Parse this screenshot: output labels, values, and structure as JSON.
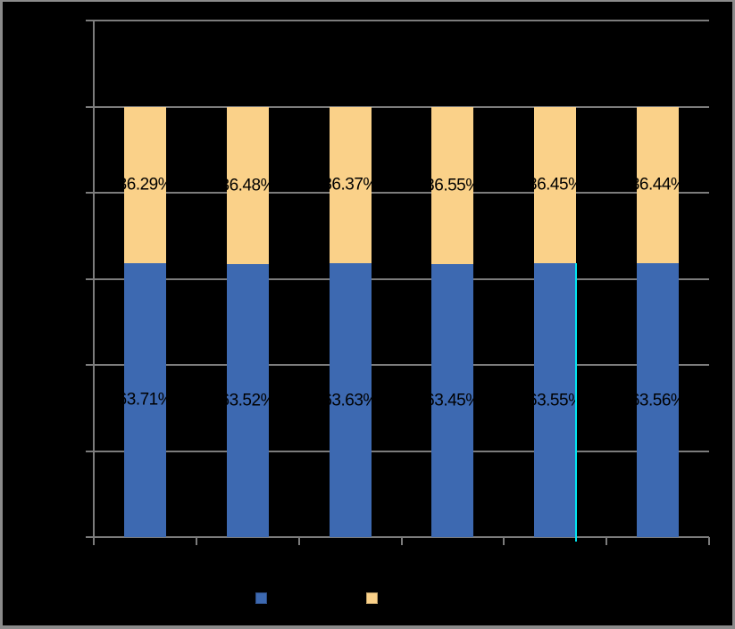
{
  "window": {
    "background": "#000000",
    "frame_border_color": "#8B8B8B"
  },
  "chart_data": {
    "type": "bar",
    "stacked": true,
    "orientation": "vertical",
    "categories": [
      "",
      "",
      "",
      "",
      "",
      ""
    ],
    "series": [
      {
        "name": "",
        "color": "#3D69B1",
        "values": [
          63.71,
          63.52,
          63.63,
          63.45,
          63.55,
          63.56
        ],
        "data_labels": [
          "63.71%",
          "63.52%",
          "63.63%",
          "63.45%",
          "63.55%",
          "63.56%"
        ]
      },
      {
        "name": "",
        "color": "#FAD189",
        "values": [
          36.29,
          36.48,
          36.37,
          36.55,
          36.45,
          36.44
        ],
        "data_labels": [
          "36.29%",
          "36.48%",
          "36.37%",
          "36.55%",
          "36.45%",
          "36.44%"
        ]
      }
    ],
    "ylim": [
      0,
      120
    ],
    "y_gridline_step": 20,
    "grid": true,
    "gridline_color": "#7C7C7C",
    "axis_color": "#7C7C7C",
    "data_label_color": "#000000",
    "axis_tick_labels_visible": false,
    "legend_position": "bottom",
    "legend": [
      {
        "label": "",
        "swatch_color": "#3D69B1"
      },
      {
        "label": "",
        "swatch_color": "#FAD189"
      }
    ],
    "annotations": [
      {
        "type": "vertical-cursor-line",
        "color": "#00E6F2",
        "category_index": 4,
        "edge": "right",
        "from_value": 0,
        "to_value": 63.55
      }
    ]
  }
}
